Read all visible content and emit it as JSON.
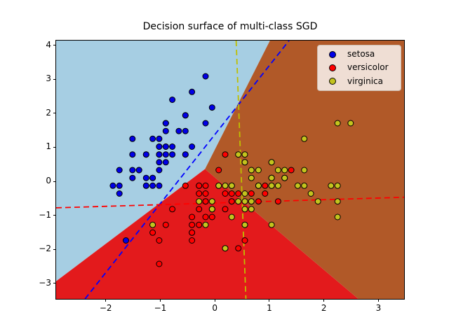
{
  "title": "Decision surface of multi-class SGD",
  "legend": {
    "items": [
      {
        "label": "setosa",
        "color": "#0000e6"
      },
      {
        "label": "versicolor",
        "color": "#ff0000"
      },
      {
        "label": "virginica",
        "color": "#c3c31e"
      }
    ]
  },
  "chart_data": {
    "type": "scatter",
    "title": "Decision surface of multi-class SGD",
    "xlabel": "",
    "ylabel": "",
    "xlim": [
      -2.91,
      3.47
    ],
    "ylim": [
      -3.46,
      4.14
    ],
    "grid": false,
    "legend_position": "upper right",
    "x_ticks": {
      "values": [
        -2,
        -1,
        0,
        1,
        2,
        3
      ],
      "labels": [
        "−2",
        "−1",
        "0",
        "1",
        "2",
        "3"
      ]
    },
    "y_ticks": {
      "values": [
        4,
        3,
        2,
        1,
        0,
        -1,
        -2,
        -3
      ],
      "labels": [
        "4",
        "3",
        "2",
        "1",
        "0",
        "−1",
        "−2",
        "−3"
      ]
    },
    "regions": [
      {
        "name": "setosa",
        "color": "#a6cee3",
        "polygon": [
          [
            -2.91,
            4.14
          ],
          [
            1.01,
            4.14
          ],
          [
            -0.18,
            0.36
          ],
          [
            -2.91,
            -2.94
          ]
        ]
      },
      {
        "name": "versicolor",
        "color": "#e31a1c",
        "polygon": [
          [
            -0.18,
            0.36
          ],
          [
            -2.91,
            -2.94
          ],
          [
            -2.91,
            -3.46
          ],
          [
            2.63,
            -3.46
          ]
        ]
      },
      {
        "name": "virginica",
        "color": "#b15928",
        "polygon": [
          [
            1.01,
            4.14
          ],
          [
            3.47,
            4.14
          ],
          [
            3.47,
            -3.46
          ],
          [
            2.63,
            -3.46
          ],
          [
            -0.18,
            0.36
          ]
        ]
      }
    ],
    "boundary_lines": [
      {
        "class": "setosa",
        "color": "#0000ff",
        "style": "dashed",
        "points": [
          [
            -2.38,
            -3.46
          ],
          [
            1.36,
            4.14
          ]
        ]
      },
      {
        "class": "versicolor",
        "color": "#ff0000",
        "style": "dashed",
        "points": [
          [
            -2.91,
            -0.78
          ],
          [
            3.47,
            -0.47
          ]
        ]
      },
      {
        "class": "virginica",
        "color": "#bfbf00",
        "style": "dashed",
        "points": [
          [
            0.39,
            4.14
          ],
          [
            0.57,
            -3.46
          ]
        ]
      }
    ],
    "series": [
      {
        "name": "setosa",
        "color": "#0000e6",
        "edge_color": "#000000",
        "points": [
          [
            -0.9,
            1.02
          ],
          [
            -1.14,
            -0.13
          ],
          [
            -1.39,
            0.33
          ],
          [
            -1.51,
            0.1
          ],
          [
            -1.02,
            1.25
          ],
          [
            -0.54,
            1.94
          ],
          [
            -1.51,
            0.79
          ],
          [
            -1.02,
            0.79
          ],
          [
            -1.75,
            -0.36
          ],
          [
            -1.14,
            0.1
          ],
          [
            -0.54,
            1.48
          ],
          [
            -1.26,
            0.79
          ],
          [
            -1.26,
            -0.13
          ],
          [
            -1.87,
            -0.13
          ],
          [
            -0.05,
            2.17
          ],
          [
            -0.17,
            3.09
          ],
          [
            -0.54,
            1.94
          ],
          [
            -0.9,
            1.02
          ],
          [
            -0.17,
            1.71
          ],
          [
            -0.9,
            1.71
          ],
          [
            -0.54,
            0.79
          ],
          [
            -0.9,
            1.48
          ],
          [
            -1.51,
            1.25
          ],
          [
            -0.9,
            0.56
          ],
          [
            -1.26,
            0.79
          ],
          [
            -1.02,
            -0.13
          ],
          [
            -1.02,
            0.79
          ],
          [
            -0.78,
            1.02
          ],
          [
            -0.78,
            0.79
          ],
          [
            -1.39,
            0.33
          ],
          [
            -1.26,
            0.1
          ],
          [
            -0.54,
            0.79
          ],
          [
            -0.78,
            2.4
          ],
          [
            -0.42,
            2.63
          ],
          [
            -1.14,
            0.1
          ],
          [
            -1.02,
            0.33
          ],
          [
            -0.42,
            1.02
          ],
          [
            -1.14,
            1.25
          ],
          [
            -1.75,
            -0.13
          ],
          [
            -0.9,
            0.79
          ],
          [
            -1.02,
            1.02
          ],
          [
            -1.63,
            -1.74
          ],
          [
            -1.75,
            0.33
          ],
          [
            -1.02,
            1.02
          ],
          [
            -0.9,
            1.71
          ],
          [
            -1.26,
            -0.13
          ],
          [
            -0.9,
            1.71
          ],
          [
            -1.51,
            0.33
          ],
          [
            -0.66,
            1.48
          ],
          [
            -1.02,
            0.56
          ]
        ]
      },
      {
        "name": "versicolor",
        "color": "#ff0000",
        "edge_color": "#000000",
        "points": [
          [
            1.4,
            0.33
          ],
          [
            0.67,
            0.33
          ],
          [
            1.28,
            0.1
          ],
          [
            -0.42,
            -1.74
          ],
          [
            0.8,
            -0.59
          ],
          [
            -0.17,
            -0.59
          ],
          [
            0.55,
            0.56
          ],
          [
            -1.14,
            -1.51
          ],
          [
            0.92,
            -0.36
          ],
          [
            -0.78,
            -0.82
          ],
          [
            -1.02,
            -2.43
          ],
          [
            0.07,
            -0.13
          ],
          [
            0.19,
            -1.97
          ],
          [
            0.31,
            -0.36
          ],
          [
            -0.29,
            -0.36
          ],
          [
            1.04,
            0.1
          ],
          [
            -0.29,
            -0.13
          ],
          [
            -0.05,
            -0.82
          ],
          [
            0.43,
            -1.97
          ],
          [
            -0.29,
            -1.28
          ],
          [
            0.07,
            0.33
          ],
          [
            0.31,
            -0.59
          ],
          [
            0.55,
            -1.28
          ],
          [
            0.31,
            -0.59
          ],
          [
            0.67,
            -0.36
          ],
          [
            0.92,
            -0.13
          ],
          [
            1.16,
            -0.59
          ],
          [
            1.04,
            -0.13
          ],
          [
            0.19,
            -0.36
          ],
          [
            -0.17,
            -1.05
          ],
          [
            -0.42,
            -1.51
          ],
          [
            -0.42,
            -1.51
          ],
          [
            -0.05,
            -0.82
          ],
          [
            0.19,
            -0.82
          ],
          [
            -0.54,
            -0.13
          ],
          [
            0.19,
            0.79
          ],
          [
            1.04,
            0.1
          ],
          [
            0.55,
            -1.74
          ],
          [
            -0.29,
            -0.13
          ],
          [
            -0.42,
            -1.28
          ],
          [
            -0.42,
            -1.05
          ],
          [
            0.31,
            -0.13
          ],
          [
            -0.05,
            -1.05
          ],
          [
            -1.02,
            -1.74
          ],
          [
            -0.29,
            -0.82
          ],
          [
            -0.17,
            -0.13
          ],
          [
            -0.17,
            -0.36
          ],
          [
            0.43,
            -0.36
          ],
          [
            -0.9,
            -1.28
          ],
          [
            -0.17,
            -0.59
          ]
        ]
      },
      {
        "name": "virginica",
        "color": "#c3c31e",
        "edge_color": "#000000",
        "points": [
          [
            0.55,
            0.56
          ],
          [
            -0.05,
            -0.82
          ],
          [
            1.52,
            -0.13
          ],
          [
            0.55,
            -0.36
          ],
          [
            0.8,
            -0.13
          ],
          [
            2.13,
            -0.13
          ],
          [
            -1.14,
            -1.28
          ],
          [
            1.76,
            -0.36
          ],
          [
            1.04,
            -1.28
          ],
          [
            1.64,
            1.25
          ],
          [
            0.8,
            0.33
          ],
          [
            0.67,
            -0.82
          ],
          [
            1.16,
            -0.13
          ],
          [
            -0.17,
            -1.28
          ],
          [
            -0.05,
            -0.59
          ],
          [
            0.67,
            0.33
          ],
          [
            0.8,
            -0.13
          ],
          [
            2.25,
            1.71
          ],
          [
            2.25,
            -1.05
          ],
          [
            0.19,
            -1.97
          ],
          [
            1.28,
            0.33
          ],
          [
            -0.29,
            -0.59
          ],
          [
            2.25,
            -0.59
          ],
          [
            0.55,
            -0.82
          ],
          [
            1.04,
            0.56
          ],
          [
            1.64,
            0.33
          ],
          [
            0.43,
            -0.59
          ],
          [
            0.31,
            -0.13
          ],
          [
            0.67,
            -0.59
          ],
          [
            1.64,
            -0.13
          ],
          [
            1.89,
            -0.59
          ],
          [
            2.49,
            1.71
          ],
          [
            0.67,
            -0.59
          ],
          [
            0.55,
            -0.59
          ],
          [
            0.31,
            -1.05
          ],
          [
            2.25,
            -0.13
          ],
          [
            0.55,
            0.79
          ],
          [
            0.67,
            0.1
          ],
          [
            0.19,
            -0.13
          ],
          [
            1.28,
            0.1
          ],
          [
            1.04,
            0.1
          ],
          [
            1.28,
            0.1
          ],
          [
            -0.05,
            -0.82
          ],
          [
            1.16,
            0.33
          ],
          [
            1.04,
            0.56
          ],
          [
            1.04,
            -0.13
          ],
          [
            0.55,
            -1.28
          ],
          [
            0.8,
            -0.13
          ],
          [
            0.43,
            0.79
          ],
          [
            0.07,
            -0.13
          ]
        ]
      }
    ]
  }
}
